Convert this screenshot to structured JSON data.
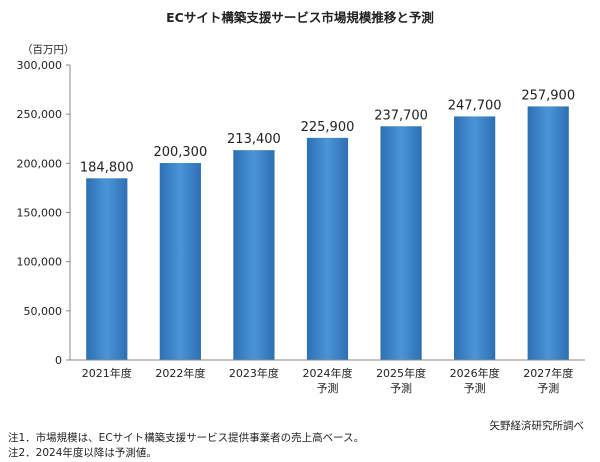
{
  "chart_data": {
    "type": "bar",
    "title": "ECサイト構築支援サービス市場規模推移と予測",
    "unit_label": "（百万円）",
    "categories": [
      [
        "2021年度"
      ],
      [
        "2022年度"
      ],
      [
        "2023年度"
      ],
      [
        "2024年度",
        "予測"
      ],
      [
        "2025年度",
        "予測"
      ],
      [
        "2026年度",
        "予測"
      ],
      [
        "2027年度",
        "予測"
      ]
    ],
    "values": [
      184800,
      200300,
      213400,
      225900,
      237700,
      247700,
      257900
    ],
    "value_labels": [
      "184,800",
      "200,300",
      "213,400",
      "225,900",
      "237,700",
      "247,700",
      "257,900"
    ],
    "ylim": [
      0,
      300000
    ],
    "yticks": [
      0,
      50000,
      100000,
      150000,
      200000,
      250000,
      300000
    ],
    "ytick_labels": [
      "0",
      "50,000",
      "100,000",
      "150,000",
      "200,000",
      "250,000",
      "300,000"
    ],
    "grid": false,
    "bar_color_top": "#2e6fb3",
    "bar_color_mid": "#4a95d6",
    "bar_color_bottom": "#2e6fb3"
  },
  "source": "矢野経済研究所調べ",
  "notes": [
    "注1．市場規模は、ECサイト構築支援サービス提供事業者の売上高ベース。",
    "注2．2024年度以降は予測値。"
  ]
}
